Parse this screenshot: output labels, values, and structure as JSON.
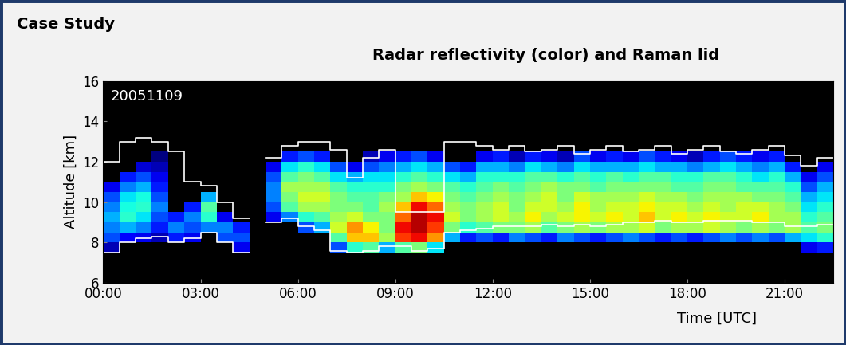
{
  "chart_data": {
    "type": "heatmap",
    "header": "Case Study",
    "title": "Radar reflectivity (color) and Raman lid",
    "annotation": "20051109",
    "x_label": "Time [UTC]",
    "y_label": "Altitude [km]",
    "xlim": [
      0,
      22.5
    ],
    "ylim": [
      6,
      16
    ],
    "xticks": [
      {
        "value": 0,
        "label": "00:00"
      },
      {
        "value": 3,
        "label": "03:00"
      },
      {
        "value": 6,
        "label": "06:00"
      },
      {
        "value": 9,
        "label": "09:00"
      },
      {
        "value": 12,
        "label": "12:00"
      },
      {
        "value": 15,
        "label": "15:00"
      },
      {
        "value": 18,
        "label": "18:00"
      },
      {
        "value": 21,
        "label": "21:00"
      }
    ],
    "yticks": [
      6,
      8,
      10,
      12,
      14,
      16
    ],
    "color_range": [
      -30,
      10
    ],
    "x_edges": [
      0,
      0.5,
      1,
      1.5,
      2,
      2.5,
      3,
      3.5,
      4,
      4.5,
      5,
      5.5,
      6,
      6.5,
      7,
      7.5,
      8,
      8.5,
      9,
      9.5,
      10,
      10.5,
      11,
      11.5,
      12,
      12.5,
      13,
      13.5,
      14,
      14.5,
      15,
      15.5,
      16,
      16.5,
      17,
      17.5,
      18,
      18.5,
      19,
      19.5,
      20,
      20.5,
      21,
      21.5,
      22,
      22.5
    ],
    "y_edges": [
      7,
      7.5,
      8,
      8.5,
      9,
      9.5,
      10,
      10.5,
      11,
      11.5,
      12,
      12.5,
      13,
      13.5,
      14
    ],
    "cells": [
      [
        null,
        -28,
        -22,
        -20,
        -18,
        -20,
        -22,
        -26,
        null,
        null,
        null,
        null,
        null,
        null
      ],
      [
        null,
        null,
        -25,
        -18,
        -14,
        -15,
        -16,
        -20,
        -24,
        null,
        null,
        null,
        null,
        null
      ],
      [
        null,
        null,
        -26,
        -20,
        -16,
        -14,
        -15,
        -18,
        -22,
        -27,
        null,
        null,
        null,
        null
      ],
      [
        null,
        null,
        -28,
        -24,
        -22,
        -20,
        -22,
        -24,
        -26,
        -28,
        -30,
        null,
        null,
        null
      ],
      [
        null,
        null,
        -24,
        -20,
        -24,
        null,
        null,
        null,
        null,
        null,
        null,
        null,
        null,
        null
      ],
      [
        null,
        null,
        -26,
        -22,
        -20,
        -24,
        null,
        null,
        null,
        null,
        null,
        null,
        null,
        null
      ],
      [
        null,
        null,
        null,
        -20,
        -14,
        -12,
        -18,
        null,
        null,
        null,
        null,
        null,
        null,
        null
      ],
      [
        null,
        null,
        -22,
        -20,
        -26,
        null,
        null,
        null,
        null,
        null,
        null,
        null,
        null,
        null
      ],
      [
        null,
        -26,
        -22,
        -24,
        null,
        null,
        null,
        null,
        null,
        null,
        null,
        null,
        null,
        null
      ],
      [
        null,
        null,
        null,
        null,
        null,
        null,
        null,
        null,
        null,
        null,
        null,
        null,
        null,
        null
      ],
      [
        null,
        null,
        null,
        null,
        -26,
        -22,
        -20,
        -20,
        -22,
        -26,
        null,
        null,
        null,
        null
      ],
      [
        null,
        null,
        null,
        null,
        -20,
        -12,
        -10,
        -8,
        -12,
        -16,
        -24,
        null,
        null,
        null
      ],
      [
        null,
        null,
        null,
        -22,
        -14,
        -8,
        -6,
        -8,
        -10,
        -14,
        -22,
        null,
        null,
        null
      ],
      [
        null,
        null,
        null,
        -18,
        -12,
        -8,
        -6,
        -8,
        -12,
        -16,
        -24,
        null,
        null,
        null
      ],
      [
        null,
        -22,
        -12,
        -6,
        -8,
        -10,
        -10,
        -12,
        -16,
        -22,
        null,
        null,
        null,
        null
      ],
      [
        null,
        -14,
        -2,
        0,
        -6,
        -10,
        -12,
        -14,
        -18,
        -26,
        null,
        null,
        null,
        null
      ],
      [
        null,
        -12,
        -2,
        -4,
        -10,
        -12,
        -12,
        -14,
        -16,
        -22,
        -28,
        null,
        null,
        null
      ],
      [
        null,
        -18,
        -8,
        -10,
        -10,
        -8,
        -10,
        -14,
        -16,
        -20,
        -26,
        null,
        null,
        null
      ],
      [
        null,
        -12,
        4,
        6,
        2,
        -2,
        -8,
        -10,
        -14,
        -18,
        -24,
        null,
        null,
        null
      ],
      [
        null,
        -10,
        6,
        8,
        8,
        6,
        -2,
        -8,
        -12,
        -16,
        -22,
        null,
        null,
        null
      ],
      [
        null,
        -16,
        0,
        4,
        6,
        2,
        -4,
        -10,
        -14,
        -18,
        -26,
        null,
        null,
        null
      ],
      [
        null,
        null,
        -18,
        -10,
        -6,
        -8,
        -10,
        -12,
        -16,
        -22,
        null,
        null,
        null,
        null
      ],
      [
        null,
        null,
        -24,
        -14,
        -10,
        -10,
        -12,
        -14,
        -18,
        -24,
        null,
        null,
        null,
        null
      ],
      [
        null,
        null,
        -22,
        -12,
        -8,
        -8,
        -10,
        -12,
        -14,
        -18,
        -26,
        null,
        null,
        null
      ],
      [
        null,
        null,
        -24,
        -10,
        -6,
        -6,
        -8,
        -10,
        -14,
        -18,
        -24,
        null,
        null,
        null
      ],
      [
        null,
        null,
        -20,
        -10,
        -8,
        -10,
        -10,
        -12,
        -14,
        -20,
        -28,
        null,
        null,
        null
      ],
      [
        null,
        null,
        -22,
        -8,
        -4,
        -6,
        -8,
        -10,
        -12,
        -16,
        -24,
        null,
        null,
        null
      ],
      [
        null,
        null,
        -24,
        -12,
        -8,
        -6,
        -6,
        -8,
        -12,
        -18,
        -26,
        null,
        null,
        null
      ],
      [
        null,
        null,
        -20,
        -10,
        -6,
        -8,
        -10,
        -10,
        -14,
        -20,
        -28,
        null,
        null,
        null
      ],
      [
        null,
        null,
        -22,
        -8,
        -4,
        -4,
        -6,
        -10,
        -12,
        -16,
        -22,
        null,
        null,
        null
      ],
      [
        null,
        null,
        -24,
        -10,
        -6,
        -8,
        -8,
        -12,
        -14,
        -18,
        -26,
        null,
        null,
        null
      ],
      [
        null,
        null,
        -22,
        -8,
        -4,
        -6,
        -8,
        -10,
        -12,
        -18,
        -24,
        null,
        null,
        null
      ],
      [
        null,
        null,
        -20,
        -8,
        -6,
        -6,
        -8,
        -10,
        -14,
        -18,
        -26,
        null,
        null,
        null
      ],
      [
        null,
        null,
        -22,
        -6,
        -2,
        -4,
        -6,
        -10,
        -12,
        -16,
        -22,
        null,
        null,
        null
      ],
      [
        null,
        null,
        -24,
        -10,
        -6,
        -6,
        -8,
        -10,
        -12,
        -18,
        -24,
        null,
        null,
        null
      ],
      [
        null,
        null,
        -22,
        -8,
        -4,
        -6,
        -8,
        -12,
        -14,
        -18,
        -26,
        null,
        null,
        null
      ],
      [
        null,
        null,
        -24,
        -8,
        -6,
        -8,
        -10,
        -12,
        -14,
        -20,
        -28,
        null,
        null,
        null
      ],
      [
        null,
        null,
        -22,
        -6,
        -4,
        -6,
        -8,
        -10,
        -12,
        -18,
        -24,
        null,
        null,
        null
      ],
      [
        null,
        null,
        -20,
        -8,
        -6,
        -8,
        -8,
        -10,
        -12,
        -16,
        -22,
        null,
        null,
        null
      ],
      [
        null,
        null,
        -22,
        -10,
        -6,
        -6,
        -8,
        -12,
        -14,
        -18,
        -24,
        null,
        null,
        null
      ],
      [
        null,
        null,
        -20,
        -8,
        -4,
        -6,
        -10,
        -12,
        -16,
        -20,
        -26,
        null,
        null,
        null
      ],
      [
        null,
        null,
        -22,
        -10,
        -8,
        -8,
        -10,
        -12,
        -14,
        -18,
        -24,
        null,
        null,
        null
      ],
      [
        null,
        null,
        -18,
        -8,
        -8,
        -10,
        -12,
        -14,
        -18,
        -24,
        null,
        null,
        null,
        null
      ],
      [
        null,
        -26,
        -16,
        -12,
        -14,
        -16,
        -18,
        -22,
        -26,
        null,
        null,
        null,
        null,
        null
      ],
      [
        null,
        -24,
        -14,
        -10,
        -12,
        -14,
        -16,
        -18,
        -22,
        -26,
        null,
        null,
        null,
        null
      ]
    ],
    "lidar_top": [
      12.0,
      13.0,
      13.2,
      13.0,
      12.5,
      11.0,
      10.8,
      10.0,
      9.2,
      null,
      12.2,
      12.8,
      13.0,
      13.0,
      12.6,
      11.2,
      12.2,
      12.6,
      9.5,
      9.5,
      9.5,
      13.0,
      13.0,
      12.8,
      12.6,
      12.8,
      12.5,
      12.6,
      12.8,
      12.4,
      12.6,
      12.8,
      12.5,
      12.6,
      12.8,
      12.4,
      12.6,
      12.8,
      12.5,
      12.4,
      12.6,
      12.8,
      12.3,
      11.8,
      12.2
    ],
    "lidar_base": [
      7.5,
      8.0,
      8.2,
      8.3,
      8.0,
      8.2,
      8.5,
      8.0,
      7.5,
      null,
      9.0,
      9.2,
      8.8,
      8.6,
      7.6,
      7.5,
      7.6,
      7.8,
      7.8,
      7.6,
      7.7,
      8.5,
      8.6,
      8.7,
      8.8,
      8.8,
      8.8,
      8.9,
      8.8,
      8.9,
      8.8,
      8.9,
      9.0,
      9.0,
      9.1,
      9.0,
      9.0,
      9.1,
      9.1,
      9.1,
      9.0,
      9.0,
      8.8,
      8.8,
      8.9
    ],
    "color": "#ffffff",
    "grid": false
  }
}
